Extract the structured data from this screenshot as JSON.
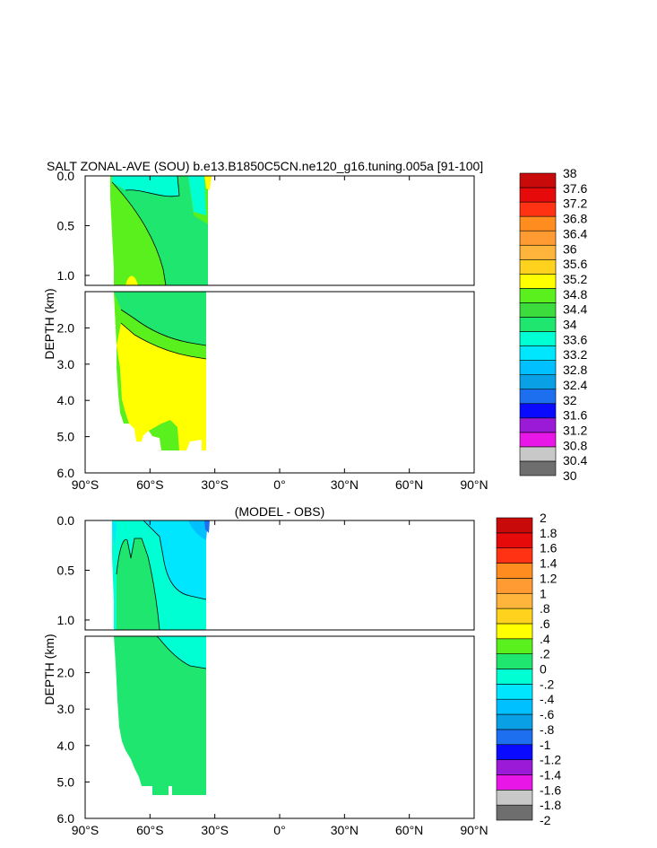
{
  "chart_data": [
    {
      "type": "heatmap",
      "title": "SALT ZONAL-AVE (SOU) b.e13.B1850C5CN.ne120_g16.tuning.005a [91-100]",
      "ylabel": "DEPTH (km)",
      "xlim": [
        -90,
        90
      ],
      "ylim": [
        6.0,
        0.0
      ],
      "x_tick_labels": [
        "90°S",
        "60°S",
        "30°S",
        "0°",
        "30°N",
        "60°N",
        "90°N"
      ],
      "y_tick_labels_top": [
        "0.0",
        "0.5",
        "1.0"
      ],
      "y_tick_labels_bottom": [
        "2.0",
        "3.0",
        "4.0",
        "5.0",
        "6.0"
      ],
      "colorbar_labels": [
        "30",
        "30.4",
        "30.8",
        "31.2",
        "31.6",
        "32",
        "32.4",
        "32.8",
        "33.2",
        "33.6",
        "34",
        "34.4",
        "34.8",
        "35.2",
        "35.6",
        "36",
        "36.4",
        "36.8",
        "37.2",
        "37.6",
        "38"
      ],
      "colorbar_colors": [
        "#6e6e6e",
        "#c8c8c8",
        "#e817e8",
        "#9a1ad8",
        "#0a0aff",
        "#1e6ef0",
        "#0aa0e6",
        "#00c0ff",
        "#00e6ff",
        "#00ffd2",
        "#1ee66e",
        "#3cdc3c",
        "#5af01e",
        "#ffff00",
        "#ffd21e",
        "#ffb43c",
        "#ff9b32",
        "#ff8c1e",
        "#ff3214",
        "#e60a0a",
        "#c80a0a"
      ]
    },
    {
      "type": "heatmap",
      "title": "(MODEL - OBS)",
      "ylabel": "DEPTH (km)",
      "xlim": [
        -90,
        90
      ],
      "ylim": [
        6.0,
        0.0
      ],
      "x_tick_labels": [
        "90°S",
        "60°S",
        "30°S",
        "0°",
        "30°N",
        "60°N",
        "90°N"
      ],
      "y_tick_labels_top": [
        "0.0",
        "0.5",
        "1.0"
      ],
      "y_tick_labels_bottom": [
        "2.0",
        "3.0",
        "4.0",
        "5.0",
        "6.0"
      ],
      "colorbar_labels": [
        "-2",
        "-1.8",
        "-1.6",
        "-1.4",
        "-1.2",
        "-1",
        "-.8",
        "-.6",
        "-.4",
        "-.2",
        "0",
        ".2",
        ".4",
        ".6",
        ".8",
        "1",
        "1.2",
        "1.4",
        "1.6",
        "1.8",
        "2"
      ],
      "colorbar_colors": [
        "#6e6e6e",
        "#c8c8c8",
        "#e817e8",
        "#9a1ad8",
        "#0a0aff",
        "#1e6ef0",
        "#0aa0e6",
        "#00c0ff",
        "#00e6ff",
        "#00ffd2",
        "#1ee66e",
        "#5af01e",
        "#ffff00",
        "#ffd21e",
        "#ffb43c",
        "#ff9b32",
        "#ff8c1e",
        "#ff3214",
        "#e60a0a",
        "#c80a0a"
      ]
    }
  ]
}
